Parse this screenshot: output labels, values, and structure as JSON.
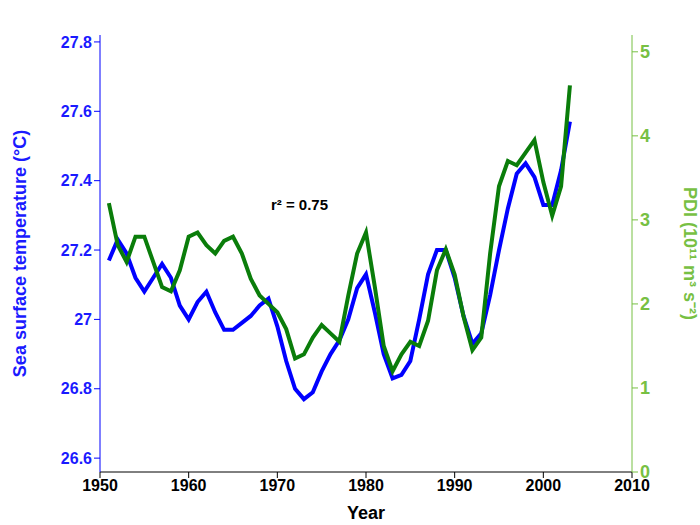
{
  "chart_data": {
    "type": "line",
    "x_label": "Year",
    "y_label": "Sea surface temperature (°C)",
    "y2_label": "PDI (10¹¹ m³ s⁻²)",
    "x": [
      1951,
      1952,
      1953,
      1954,
      1955,
      1956,
      1957,
      1958,
      1959,
      1960,
      1961,
      1962,
      1963,
      1964,
      1965,
      1966,
      1967,
      1968,
      1969,
      1970,
      1971,
      1972,
      1973,
      1974,
      1975,
      1976,
      1977,
      1978,
      1979,
      1980,
      1981,
      1982,
      1983,
      1984,
      1985,
      1986,
      1987,
      1988,
      1989,
      1990,
      1991,
      1992,
      1993,
      1994,
      1995,
      1996,
      1997,
      1998,
      1999,
      2000,
      2001,
      2002,
      2003
    ],
    "xlim": [
      1950,
      2010
    ],
    "xticks": [
      1950,
      1960,
      1970,
      1980,
      1990,
      2000,
      2010
    ],
    "ylim": [
      26.56,
      27.82
    ],
    "yticks": [
      26.6,
      26.8,
      27,
      27.2,
      27.4,
      27.6,
      27.8
    ],
    "y2lim": [
      0,
      5.2
    ],
    "y2ticks": [
      0,
      1,
      2,
      3,
      4,
      5
    ],
    "series": [
      {
        "name": "Sea surface temperature",
        "color": "#0000ff",
        "values": [
          27.17,
          27.23,
          27.19,
          27.12,
          27.08,
          27.12,
          27.16,
          27.12,
          27.04,
          27.0,
          27.05,
          27.08,
          27.02,
          26.97,
          26.97,
          26.99,
          27.01,
          27.04,
          27.06,
          26.98,
          26.88,
          26.8,
          26.77,
          26.79,
          26.85,
          26.9,
          26.94,
          27.0,
          27.09,
          27.13,
          27.02,
          26.9,
          26.83,
          26.84,
          26.88,
          27.0,
          27.13,
          27.2,
          27.2,
          27.12,
          27.01,
          26.93,
          26.96,
          27.07,
          27.2,
          27.32,
          27.42,
          27.45,
          27.41,
          27.33,
          27.33,
          27.43,
          27.57
        ]
      },
      {
        "name": "PDI",
        "color": "#0a7d0a",
        "axis": "y2",
        "values": [
          3.2,
          2.7,
          2.5,
          2.8,
          2.8,
          2.5,
          2.2,
          2.15,
          2.4,
          2.8,
          2.85,
          2.7,
          2.6,
          2.75,
          2.8,
          2.6,
          2.3,
          2.1,
          2.0,
          1.9,
          1.7,
          1.35,
          1.4,
          1.6,
          1.75,
          1.65,
          1.55,
          2.1,
          2.6,
          2.85,
          2.2,
          1.5,
          1.2,
          1.4,
          1.55,
          1.5,
          1.8,
          2.4,
          2.65,
          2.35,
          1.85,
          1.45,
          1.6,
          2.6,
          3.4,
          3.7,
          3.65,
          3.8,
          3.95,
          3.45,
          3.05,
          3.4,
          4.6
        ]
      }
    ],
    "annotations": [
      {
        "text": "r² = 0.75",
        "x": 1972.5,
        "y": 27.33
      }
    ],
    "grid": false
  }
}
